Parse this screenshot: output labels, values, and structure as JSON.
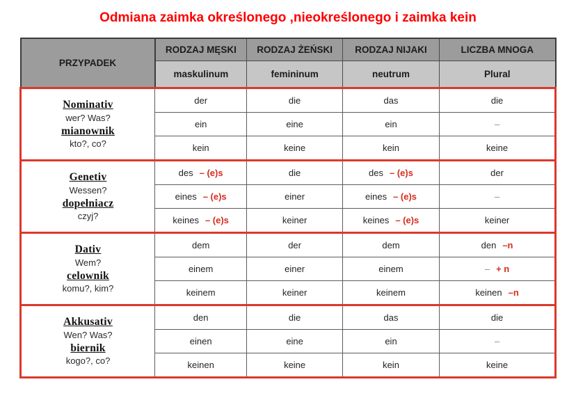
{
  "title": "Odmiana zaimka określonego ,nieokreślonego i zaimka kein",
  "colors": {
    "title_red": "#ff0000",
    "section_border_red": "#da392b",
    "suffix_red": "#d62b1d",
    "header_dark_gray": "#9c9c9c",
    "header_light_gray": "#c6c6c6",
    "case_cell_peach": "#f8d5b7"
  },
  "table": {
    "corner_header": "PRZYPADEK",
    "columns": [
      {
        "top": "RODZAJ MĘSKI",
        "sub": "maskulinum"
      },
      {
        "top": "RODZAJ ŻEŃSKI",
        "sub": "femininum"
      },
      {
        "top": "RODZAJ NIJAKI",
        "sub": "neutrum"
      },
      {
        "top": "LICZBA MNOGA",
        "sub": "Plural"
      }
    ],
    "sections": [
      {
        "case": {
          "german": "Nominativ",
          "german_q": "wer? Was?",
          "polish": "mianownik",
          "polish_q": "kto?, co?"
        },
        "rows": [
          [
            {
              "text": "der"
            },
            {
              "text": "die"
            },
            {
              "text": "das"
            },
            {
              "text": "die"
            }
          ],
          [
            {
              "text": "ein"
            },
            {
              "text": "eine"
            },
            {
              "text": "ein"
            },
            {
              "text": "–"
            }
          ],
          [
            {
              "text": "kein"
            },
            {
              "text": "keine"
            },
            {
              "text": "kein"
            },
            {
              "text": "keine"
            }
          ]
        ]
      },
      {
        "case": {
          "german": "Genetiv",
          "german_q": "Wessen?",
          "polish": "dopełniacz",
          "polish_q": "czyj?"
        },
        "rows": [
          [
            {
              "text": "des",
              "suffix": "– (e)s"
            },
            {
              "text": "die"
            },
            {
              "text": "des",
              "suffix": "– (e)s"
            },
            {
              "text": "der"
            }
          ],
          [
            {
              "text": "eines",
              "suffix": "– (e)s"
            },
            {
              "text": "einer"
            },
            {
              "text": "eines",
              "suffix": "– (e)s"
            },
            {
              "text": "–"
            }
          ],
          [
            {
              "text": "keines",
              "suffix": "– (e)s"
            },
            {
              "text": "keiner"
            },
            {
              "text": "keines",
              "suffix": "– (e)s"
            },
            {
              "text": "keiner"
            }
          ]
        ]
      },
      {
        "case": {
          "german": "Dativ",
          "german_q": "Wem?",
          "polish": "celownik",
          "polish_q": "komu?, kim?"
        },
        "rows": [
          [
            {
              "text": "dem"
            },
            {
              "text": "der"
            },
            {
              "text": "dem"
            },
            {
              "text": "den",
              "suffix": "–n"
            }
          ],
          [
            {
              "text": "einem"
            },
            {
              "text": "einer"
            },
            {
              "text": "einem"
            },
            {
              "text": "–",
              "suffix": "+ n"
            }
          ],
          [
            {
              "text": "keinem"
            },
            {
              "text": "keiner"
            },
            {
              "text": "keinem"
            },
            {
              "text": "keinen",
              "suffix": "–n"
            }
          ]
        ]
      },
      {
        "case": {
          "german": "Akkusativ",
          "german_q": "Wen? Was?",
          "polish": "biernik",
          "polish_q": "kogo?, co?"
        },
        "rows": [
          [
            {
              "text": "den"
            },
            {
              "text": "die"
            },
            {
              "text": "das"
            },
            {
              "text": "die"
            }
          ],
          [
            {
              "text": "einen"
            },
            {
              "text": "eine"
            },
            {
              "text": "ein"
            },
            {
              "text": "–"
            }
          ],
          [
            {
              "text": "keinen"
            },
            {
              "text": "keine"
            },
            {
              "text": "kein"
            },
            {
              "text": "keine"
            }
          ]
        ]
      }
    ]
  }
}
